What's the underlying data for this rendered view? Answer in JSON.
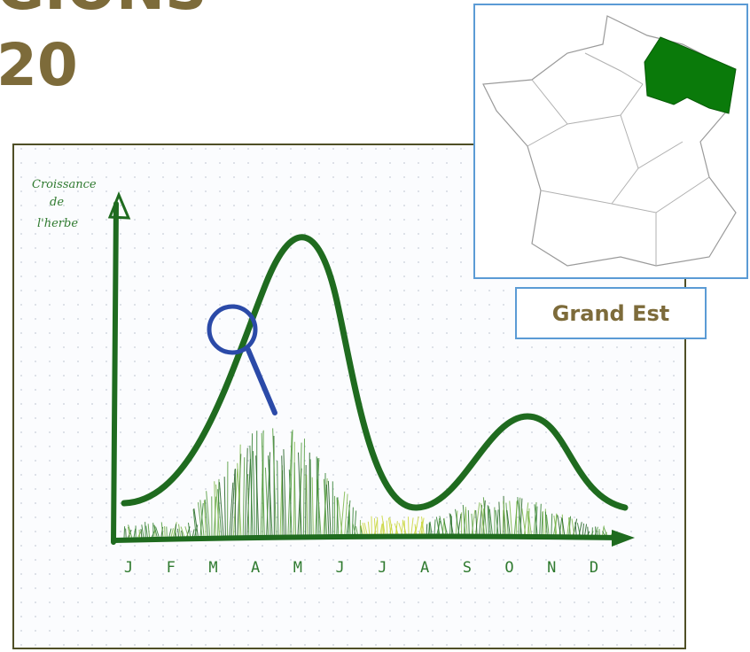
{
  "header": {
    "title_lines": [
      "GIONS",
      "20"
    ]
  },
  "sketch": {
    "y_axis_label": [
      "Croissance",
      "de",
      "l'herbe"
    ],
    "months": [
      "J",
      "F",
      "M",
      "A",
      "M",
      "J",
      "J",
      "A",
      "S",
      "O",
      "N",
      "D"
    ]
  },
  "map": {
    "region": "Grand Est"
  }
}
